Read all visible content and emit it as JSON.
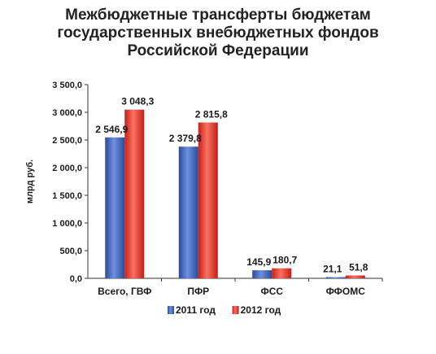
{
  "chart_data": {
    "type": "bar",
    "title_lines": [
      "Межбюджетные трансферты бюджетам",
      "государственных внебюджетных фондов",
      "Российской Федерации"
    ],
    "ylabel": "млрд руб.",
    "xlabel": "",
    "ylim": [
      0,
      3500
    ],
    "yticks": [
      "0,0",
      "500,0",
      "1 000,0",
      "1 500,0",
      "2 000,0",
      "2 500,0",
      "3 000,0",
      "3 500,0"
    ],
    "categories": [
      "Всего, ГВФ",
      "ПФР",
      "ФСС",
      "ФФОМС"
    ],
    "series": [
      {
        "name": "2011 год",
        "color": "#3f61b8",
        "values": [
          2546.9,
          2379.8,
          145.9,
          21.1
        ],
        "labels": [
          "2 546,9",
          "2 379,8",
          "145,9",
          "21,1"
        ]
      },
      {
        "name": "2012 год",
        "color": "#e0322c",
        "values": [
          3048.3,
          2815.8,
          180.7,
          51.8
        ],
        "labels": [
          "3 048,3",
          "2 815,8",
          "180,7",
          "51,8"
        ]
      }
    ],
    "grid": false,
    "legend": "bottom"
  }
}
